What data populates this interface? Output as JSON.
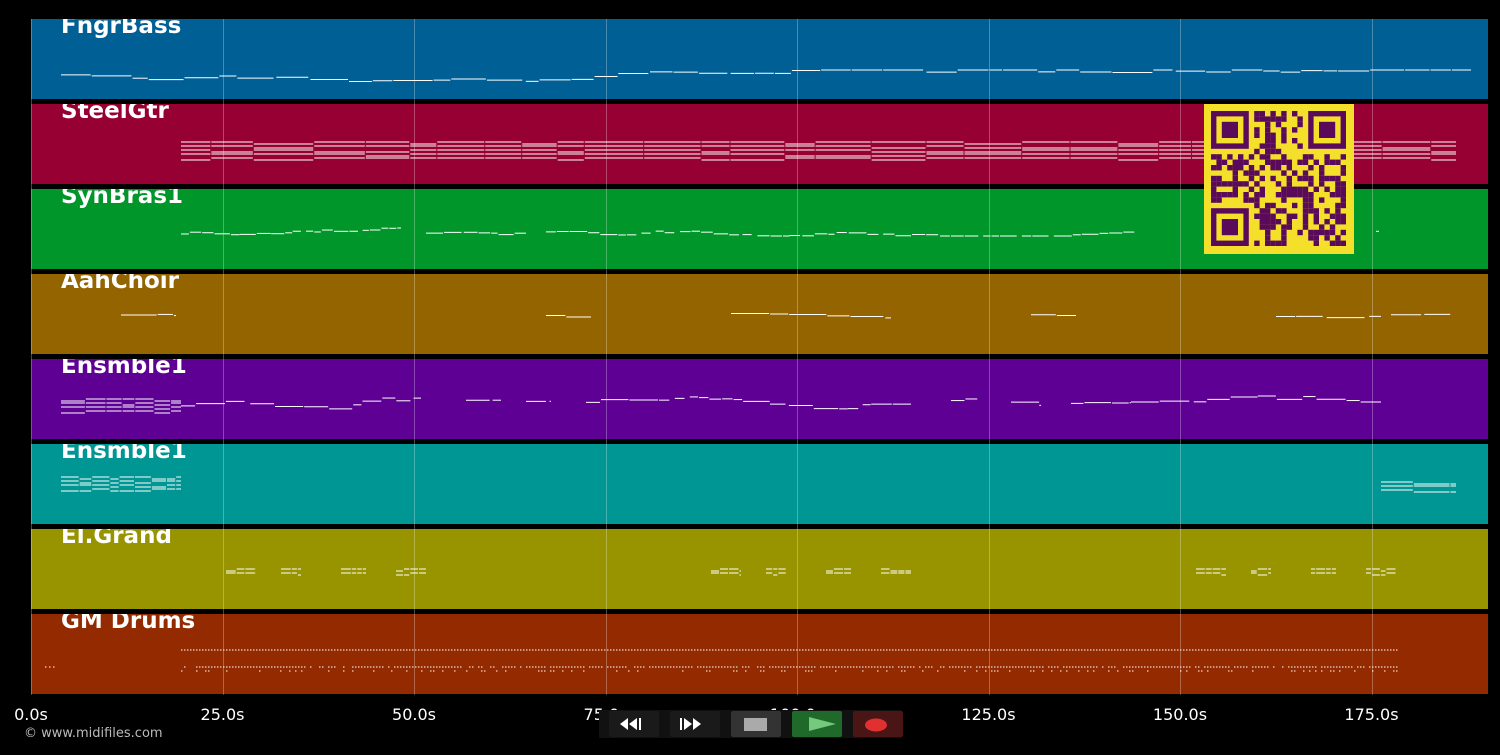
{
  "tracks": [
    {
      "name": "FngrBass",
      "color": "#005f94"
    },
    {
      "name": "SteelGtr",
      "color": "#970032"
    },
    {
      "name": "SynBras1",
      "color": "#00962a"
    },
    {
      "name": "AahChoir",
      "color": "#946400"
    },
    {
      "name": "Ensmble1",
      "color": "#5e0094"
    },
    {
      "name": "Ensmble1",
      "color": "#009694"
    },
    {
      "name": "El.Grand",
      "color": "#979400"
    },
    {
      "name": "GM Drums",
      "color": "#942a00"
    }
  ],
  "timeline": {
    "ticks": [
      "0.0s",
      "25.0s",
      "50.0s",
      "75.0s",
      "100.0s",
      "125.0s",
      "150.0s",
      "175.0s"
    ],
    "tick_seconds": [
      0,
      25,
      50,
      75,
      100,
      125,
      150,
      175
    ],
    "max_seconds": 190
  },
  "footer": {
    "copyright": "© www.midifiles.com"
  },
  "qr": {
    "colors": {
      "background": "#f4e02a",
      "modules": "#5a0a5a"
    }
  },
  "controls": [
    {
      "name": "rewind",
      "icon": "rewind-icon",
      "color": "#1a1a1a"
    },
    {
      "name": "fast-forward",
      "icon": "fast-forward-icon",
      "color": "#1a1a1a"
    },
    {
      "name": "stop",
      "icon": "stop-icon",
      "color": "#333333"
    },
    {
      "name": "play",
      "icon": "play-icon",
      "color": "#1f6a2a"
    },
    {
      "name": "record",
      "icon": "record-icon",
      "color": "#4a1515"
    }
  ]
}
